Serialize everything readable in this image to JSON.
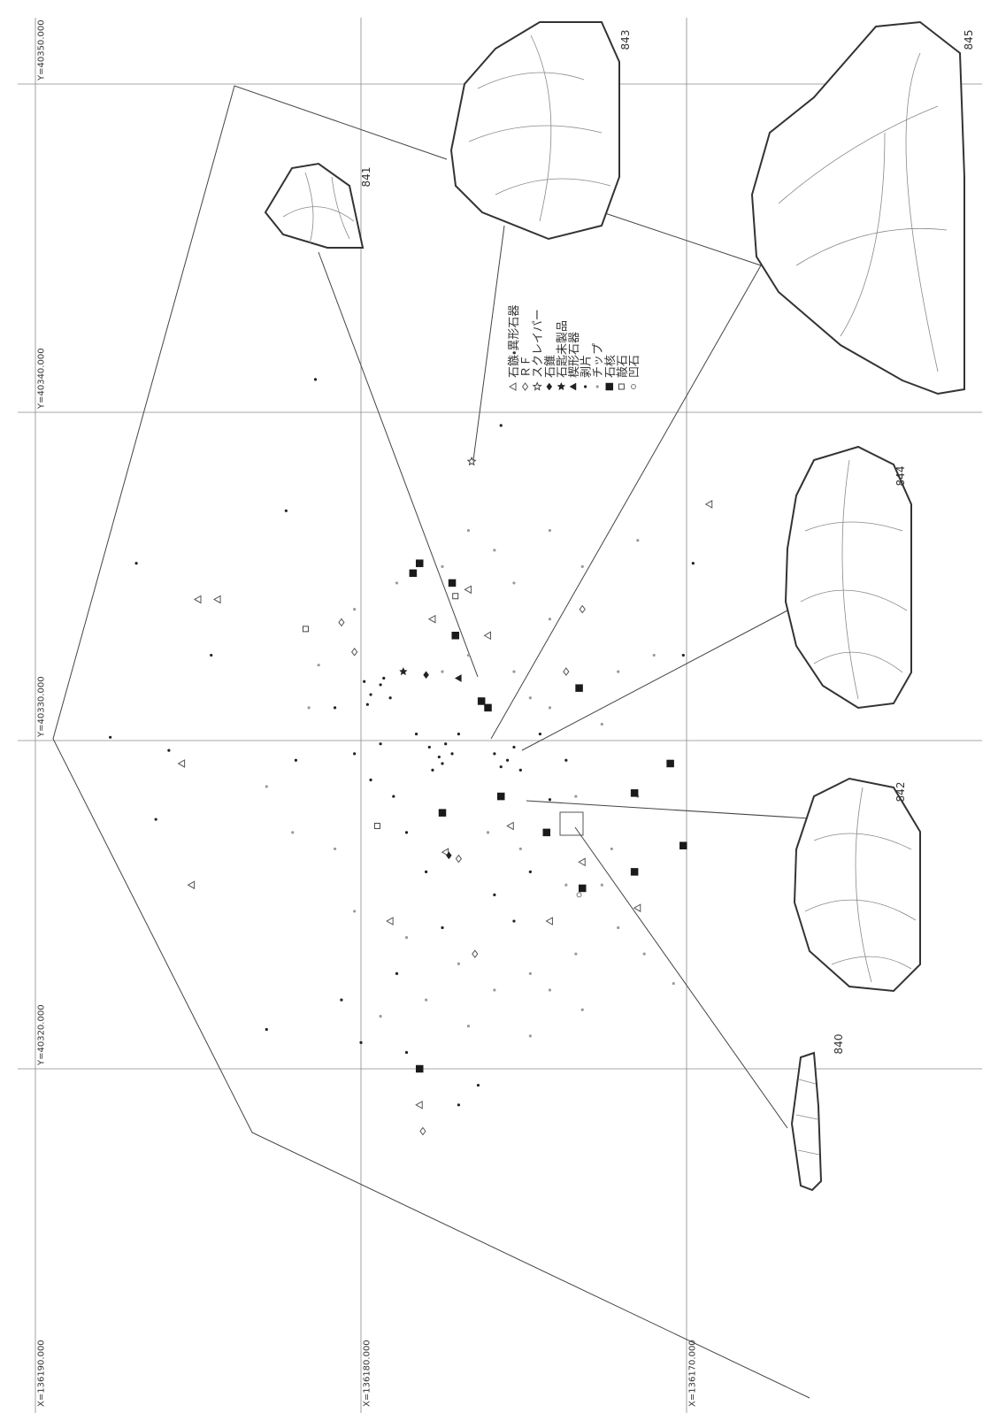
{
  "chart_data": {
    "type": "scatter",
    "xlim": [
      136190,
      136170
    ],
    "ylim": [
      40350,
      40320
    ],
    "xticks": [
      {
        "value": 136190,
        "label": "X=136190.000"
      },
      {
        "value": 136180,
        "label": "X=136180.000"
      },
      {
        "value": 136170,
        "label": "X=136170.000"
      }
    ],
    "yticks": [
      {
        "value": 40350,
        "label": "Y=40350.000"
      },
      {
        "value": 40340,
        "label": "Y=40340.000"
      },
      {
        "value": 40330,
        "label": "Y=40330.000"
      },
      {
        "value": 40320,
        "label": "Y=40320.000"
      }
    ],
    "grid": true,
    "series": [
      {
        "name": "石鏃・異形石器",
        "marker": "triangle",
        "color": "#555555",
        "x": [
          136185,
          136184.4,
          136185.5,
          136185.2,
          136178.2,
          136179.1,
          136176.7,
          136177.8,
          136176.1,
          136169.3,
          136175.4,
          136174.2,
          136173.2,
          136171.5,
          136177.4
        ],
        "y": [
          40334.3,
          40334.3,
          40329.3,
          40325.6,
          40318.9,
          40324.5,
          40334.6,
          40333.7,
          40333.2,
          40337.2,
          40327.4,
          40324.5,
          40326.3,
          40324.9,
          40326.6
        ]
      },
      {
        "name": "ＲＦ",
        "marker": "diamond",
        "color": "#555555",
        "x": [
          136180.6,
          136180.2,
          136173.2,
          136176.5,
          136178.1,
          136173.7,
          136177
        ],
        "y": [
          40333.6,
          40332.7,
          40334,
          40323.5,
          40318.1,
          40332.1,
          40326.4
        ]
      },
      {
        "name": "スクレイパー",
        "marker": "star",
        "color": "#444444",
        "x": [
          136176.6
        ],
        "y": [
          40338.5
        ]
      },
      {
        "name": "石錐",
        "marker": "diamond-filled",
        "color": "#222222",
        "x": [
          136177.3,
          136178
        ],
        "y": [
          40326.5,
          40332
        ]
      },
      {
        "name": "石匙未製品",
        "marker": "star-filled",
        "color": "#222222",
        "x": [
          136178.7
        ],
        "y": [
          40332.1
        ]
      },
      {
        "name": "楔形石器",
        "marker": "triangle-filled",
        "color": "#222222",
        "x": [
          136177
        ],
        "y": [
          40331.9
        ]
      },
      {
        "name": "剥片",
        "marker": "dot",
        "color": "#222222",
        "x": [
          136186.9,
          136187.7,
          136185.9,
          136186.3,
          136182.9,
          136182.3,
          136184.6,
          136181.4,
          136175.7,
          136169.8,
          136170.1,
          136180.6,
          136180,
          136178.9,
          136178.6,
          136177,
          136176.4,
          136182,
          136180.8,
          136180.2,
          136179.7,
          136179,
          136178.6,
          136178,
          136177.5,
          136175.9,
          136175.3,
          136174.8,
          136174.2,
          136173.7,
          136174.5,
          136175.1,
          136177,
          136178.3,
          136179.4,
          136179.9,
          136179.7,
          136179.4,
          136179.1,
          136179.8,
          136179.3,
          136177.9,
          136177.6,
          136177.4,
          136177.5,
          136177.8,
          136177.2,
          136175.9,
          136175.5,
          136175.3,
          136175.7
        ],
        "y": [
          40335.4,
          40330.1,
          40329.7,
          40327.6,
          40321.2,
          40337,
          40332.6,
          40341,
          40339.6,
          40335.4,
          40332.6,
          40322.1,
          40320.8,
          40322.9,
          40320.5,
          40318.9,
          40319.5,
          40329.4,
          40331,
          40329.6,
          40328.8,
          40328.3,
          40327.2,
          40326,
          40324.3,
          40325.3,
          40324.5,
          40326,
          40328.2,
          40329.4,
          40330.2,
          40329.1,
          40330.2,
          40330.2,
          40329.9,
          40331.8,
          40331.4,
          40331.7,
          40331.3,
          40331.1,
          40331.9,
          40329.8,
          40329.5,
          40329.9,
          40329.3,
          40329.1,
          40329.6,
          40329.6,
          40329.4,
          40329.8,
          40329.2
        ]
      },
      {
        "name": "チップ",
        "marker": "dot",
        "color": "#9a9a9a",
        "x": [
          136174.8,
          136173.4,
          136172.1,
          136174.2,
          136175.9,
          136176.7,
          136178,
          136179.4,
          136174.8,
          136173.2,
          136172.3,
          136171.5,
          136173.4,
          136172.6,
          136172.1,
          136171,
          136174.2,
          136175.3,
          136175.9,
          136176.7,
          136177.5,
          136178.9,
          136180.2,
          136181.3,
          136181.6,
          136182.9,
          136182.1,
          136180.8,
          136180.2,
          136178.6,
          136177,
          136170.4,
          136171.3,
          136174.2,
          136173.2,
          136171.5,
          136177.5,
          136176.7,
          136175.3,
          136174.8,
          136174.2,
          136176.1,
          136175.1,
          136173.7,
          136172.6
        ],
        "y": [
          40322.9,
          40323.5,
          40324.3,
          40322.4,
          40322.4,
          40321.3,
          40322.1,
          40321.6,
          40321,
          40321.8,
          40326.7,
          40328.3,
          40328.3,
          40330.5,
          40332.1,
          40332.6,
          40333.7,
          40334.8,
          40335.8,
          40336.4,
          40335.3,
          40334.8,
          40334,
          40332.3,
          40331,
          40328.6,
          40327.2,
          40326.7,
          40324.8,
          40324,
          40323.2,
          40322.6,
          40323.5,
          40336.4,
          40335.3,
          40336.1,
          40332.1,
          40332.6,
          40332.1,
          40331.3,
          40331,
          40327.2,
          40326.7,
          40325.6,
          40325.6
        ]
      },
      {
        "name": "石核",
        "marker": "square-filled",
        "color": "#1a1a1a",
        "x": [
          136178.2,
          136178.4,
          136177.2,
          136177.1,
          136173.3,
          136176.3,
          136176.1,
          136170.5,
          136175.7,
          136171.6,
          136177.5,
          136174.3,
          136170.1,
          136171.6,
          136173.2,
          136178.2
        ],
        "y": [
          40335.4,
          40335.1,
          40334.8,
          40333.2,
          40331.6,
          40331.2,
          40331,
          40329.3,
          40328.3,
          40328.4,
          40327.8,
          40327.2,
          40326.8,
          40326,
          40325.5,
          40320
        ]
      },
      {
        "name": "敲石",
        "marker": "square",
        "color": "#444444",
        "x": [
          136181.7,
          136177.1,
          136179.5
        ],
        "y": [
          40333.4,
          40334.4,
          40327.4
        ]
      },
      {
        "name": "凹石",
        "marker": "circle",
        "color": "#777777",
        "x": [
          136173.3
        ],
        "y": [
          40325.3
        ]
      }
    ]
  },
  "figure_labels": [
    "840",
    "841",
    "842",
    "843",
    "844",
    "845"
  ]
}
